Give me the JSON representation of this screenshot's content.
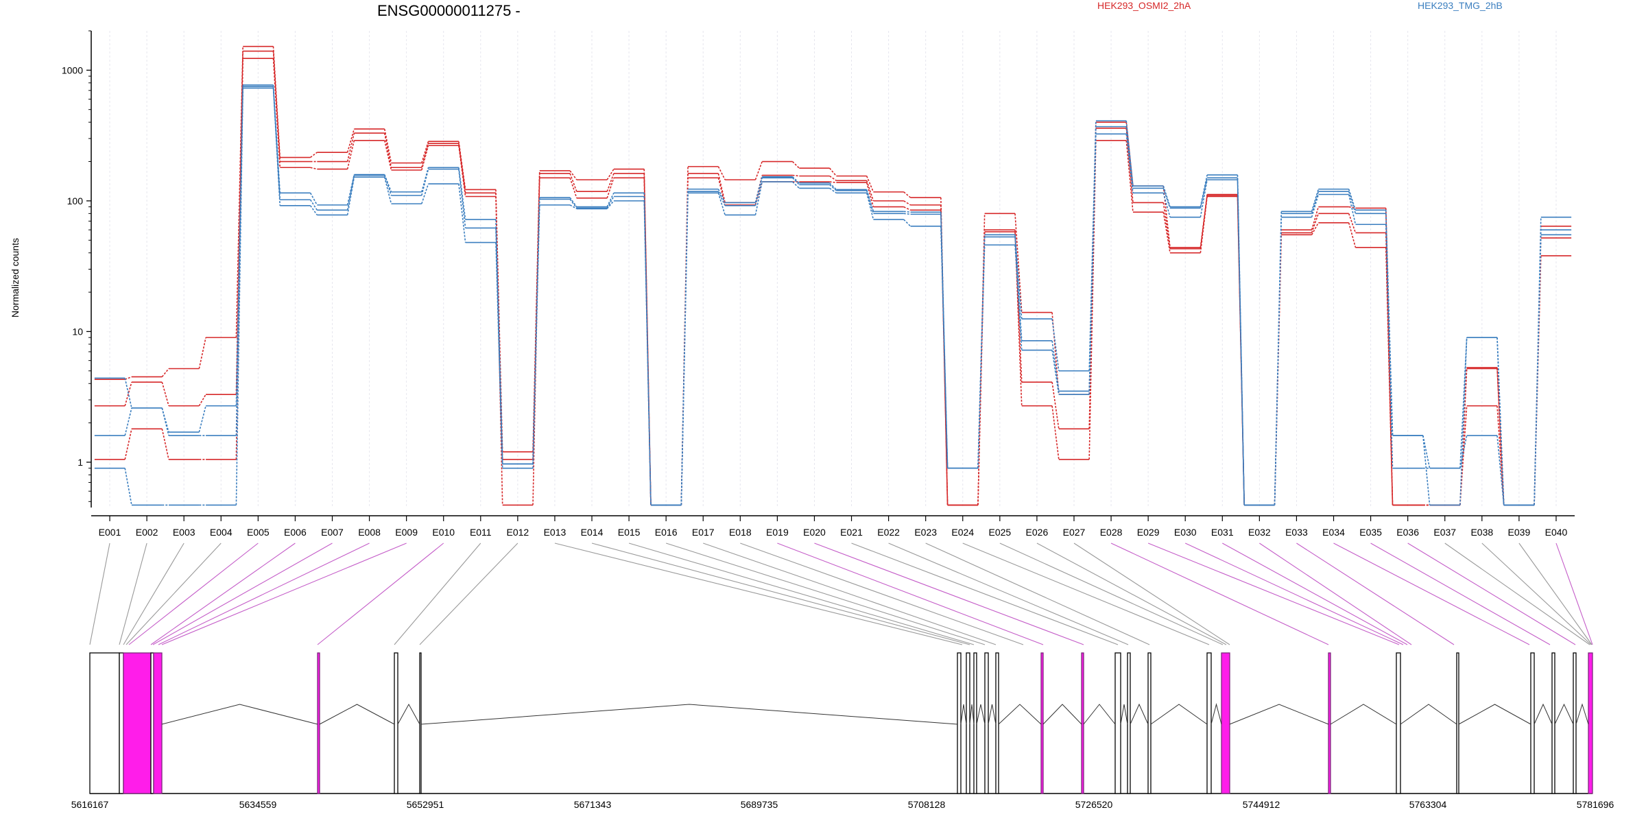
{
  "chart_data": {
    "type": "line",
    "title": "ENSG00000011275 -",
    "ylabel": "Normalized counts",
    "yscale": "log",
    "ylim": [
      0.45,
      2000
    ],
    "yticks": [
      1,
      10,
      100,
      1000
    ],
    "ytick_labels": [
      "1",
      "10",
      "100",
      "1000"
    ],
    "exons": [
      "E001",
      "E002",
      "E003",
      "E004",
      "E005",
      "E006",
      "E007",
      "E008",
      "E009",
      "E010",
      "E011",
      "E012",
      "E013",
      "E014",
      "E015",
      "E016",
      "E017",
      "E018",
      "E019",
      "E020",
      "E021",
      "E022",
      "E023",
      "E024",
      "E025",
      "E026",
      "E027",
      "E028",
      "E029",
      "E030",
      "E031",
      "E032",
      "E033",
      "E034",
      "E035",
      "E036",
      "E037",
      "E038",
      "E039",
      "E040"
    ],
    "legend": [
      {
        "label": "HEK293_OSMI2_2hA",
        "color": "#d62728",
        "position": "top-right"
      },
      {
        "label": "HEK293_TMG_2hB",
        "color": "#3a7ebf",
        "position": "top-right"
      }
    ],
    "series": [
      {
        "group": "HEK293_OSMI2_2hA",
        "color": "#d62728",
        "values": [
          1.05,
          1.8,
          1.05,
          1.05,
          1230,
          180,
          175,
          290,
          172,
          265,
          108,
          0.47,
          150,
          105,
          150,
          0.47,
          150,
          93,
          140,
          140,
          138,
          90,
          85,
          0.47,
          58,
          2.7,
          1.05,
          290,
          82,
          40,
          108,
          0.47,
          55,
          68,
          44,
          0.47,
          0.47,
          2.7,
          0.47,
          38
        ]
      },
      {
        "group": "HEK293_OSMI2_2hA",
        "color": "#d62728",
        "values": [
          2.7,
          4.1,
          2.7,
          3.3,
          1400,
          200,
          200,
          330,
          180,
          275,
          115,
          1.05,
          162,
          118,
          162,
          0.47,
          162,
          97,
          157,
          155,
          143,
          100,
          93,
          0.47,
          60,
          4.1,
          1.8,
          360,
          97,
          43,
          110,
          0.47,
          57,
          80,
          57,
          0.47,
          0.47,
          5.2,
          0.47,
          52
        ]
      },
      {
        "group": "HEK293_OSMI2_2hA",
        "color": "#d62728",
        "values": [
          4.3,
          4.5,
          5.2,
          9.0,
          1520,
          215,
          235,
          355,
          195,
          285,
          122,
          1.2,
          170,
          145,
          175,
          0.47,
          183,
          145,
          200,
          178,
          155,
          117,
          106,
          0.47,
          80,
          14,
          3.3,
          400,
          130,
          44,
          112,
          0.47,
          60,
          90,
          88,
          0.47,
          0.47,
          5.3,
          0.47,
          64
        ]
      },
      {
        "group": "HEK293_TMG_2hB",
        "color": "#3a7ebf",
        "values": [
          0.9,
          0.47,
          0.47,
          0.47,
          730,
          92,
          78,
          152,
          95,
          135,
          48,
          0.9,
          93,
          87,
          100,
          0.47,
          115,
          78,
          140,
          125,
          115,
          72,
          64,
          0.9,
          46,
          7.2,
          3.3,
          325,
          115,
          75,
          145,
          0.47,
          75,
          112,
          66,
          0.9,
          0.9,
          1.6,
          0.47,
          55
        ]
      },
      {
        "group": "HEK293_TMG_2hB",
        "color": "#3a7ebf",
        "values": [
          1.6,
          2.6,
          1.6,
          1.6,
          750,
          102,
          85,
          157,
          110,
          175,
          62,
          0.97,
          103,
          88,
          108,
          0.47,
          118,
          92,
          150,
          133,
          120,
          80,
          79,
          0.9,
          53,
          8.5,
          3.5,
          370,
          125,
          88,
          150,
          0.47,
          80,
          118,
          80,
          1.6,
          0.47,
          9.0,
          0.47,
          60
        ]
      },
      {
        "group": "HEK293_TMG_2hB",
        "color": "#3a7ebf",
        "values": [
          4.4,
          2.6,
          1.7,
          2.7,
          770,
          115,
          93,
          159,
          117,
          180,
          72,
          0.97,
          106,
          90,
          115,
          0.47,
          123,
          97,
          153,
          137,
          122,
          83,
          82,
          0.9,
          55,
          12.5,
          5.0,
          410,
          130,
          90,
          158,
          0.47,
          83,
          123,
          85,
          1.6,
          0.9,
          9.0,
          0.47,
          75
        ]
      }
    ],
    "coordinate_ticks": [
      "5616167",
      "5634559",
      "5652951",
      "5671343",
      "5689735",
      "5708128",
      "5726520",
      "5744912",
      "5763304",
      "5781696"
    ],
    "grid": true
  }
}
